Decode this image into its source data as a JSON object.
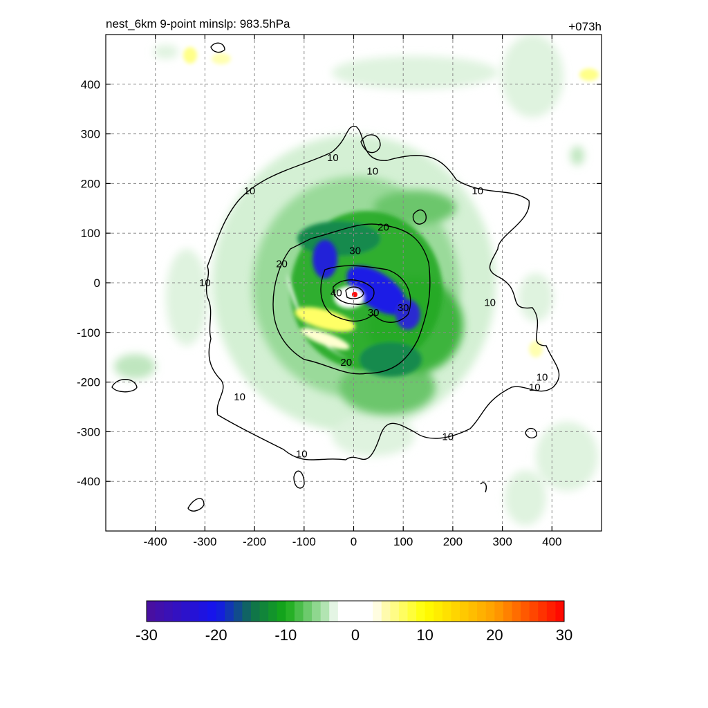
{
  "chart_data": {
    "type": "heatmap",
    "title_left": "nest_6km  9-point minslp: 983.5hPa",
    "title_right": "+073h",
    "xlabel": "",
    "ylabel": "",
    "xlim": [
      -500,
      500
    ],
    "ylim": [
      -500,
      500
    ],
    "x_ticks": [
      -400,
      -300,
      -200,
      -100,
      0,
      100,
      200,
      300,
      400
    ],
    "y_ticks": [
      400,
      300,
      200,
      100,
      0,
      -100,
      -200,
      -300,
      -400
    ],
    "grid": true,
    "storm_center": [
      3,
      -22
    ],
    "contour_labels": [
      {
        "text": "10",
        "x": -210,
        "y": 185
      },
      {
        "text": "10",
        "x": -42,
        "y": 252
      },
      {
        "text": "10",
        "x": 38,
        "y": 225
      },
      {
        "text": "10",
        "x": 250,
        "y": 185
      },
      {
        "text": "10",
        "x": -300,
        "y": 0
      },
      {
        "text": "10",
        "x": 275,
        "y": -40
      },
      {
        "text": "10",
        "x": 380,
        "y": -190
      },
      {
        "text": "10",
        "x": 365,
        "y": -210
      },
      {
        "text": "10",
        "x": -230,
        "y": -230
      },
      {
        "text": "10",
        "x": -105,
        "y": -345
      },
      {
        "text": "10",
        "x": 190,
        "y": -310
      },
      {
        "text": "20",
        "x": 60,
        "y": 112
      },
      {
        "text": "20",
        "x": -145,
        "y": 38
      },
      {
        "text": "20",
        "x": -15,
        "y": -160
      },
      {
        "text": "30",
        "x": 3,
        "y": 65
      },
      {
        "text": "30",
        "x": 40,
        "y": -60
      },
      {
        "text": "30",
        "x": 100,
        "y": -50
      },
      {
        "text": "40",
        "x": -35,
        "y": -20
      }
    ],
    "colorbar": {
      "ticks": [
        -30,
        -20,
        -10,
        0,
        10,
        20,
        30
      ],
      "range": [
        -30,
        30
      ]
    },
    "colors": {
      "deep_negative": "#4b0f9c",
      "blue": "#1414f0",
      "dark_green": "#0f6e50",
      "green": "#14aa14",
      "light_green": "#bde8bd",
      "zero": "#ffffff",
      "light_yellow": "#fffbb8",
      "yellow": "#ffff00",
      "orange": "#ff9f00",
      "red": "#ff0000"
    }
  }
}
